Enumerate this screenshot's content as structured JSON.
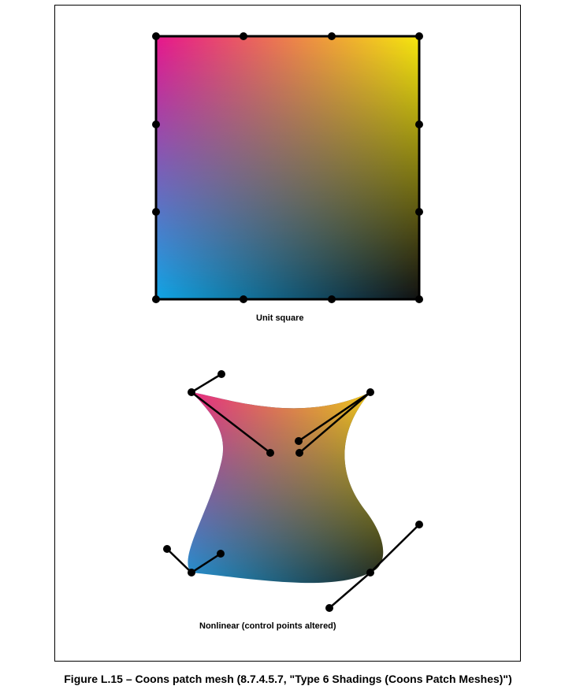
{
  "figure": {
    "label_top": "Unit square",
    "label_bottom": "Nonlinear (control points altered)",
    "caption": "Figure L.15 –  Coons patch mesh (8.7.4.5.7, \"Type 6 Shadings (Coons Patch Meshes)\")"
  },
  "colors": {
    "corner_top_left": "#e8158c",
    "corner_top_right": "#f7e80e",
    "corner_bottom_left": "#10a6e6",
    "corner_bottom_right": "#111111",
    "outline": "#000000"
  }
}
